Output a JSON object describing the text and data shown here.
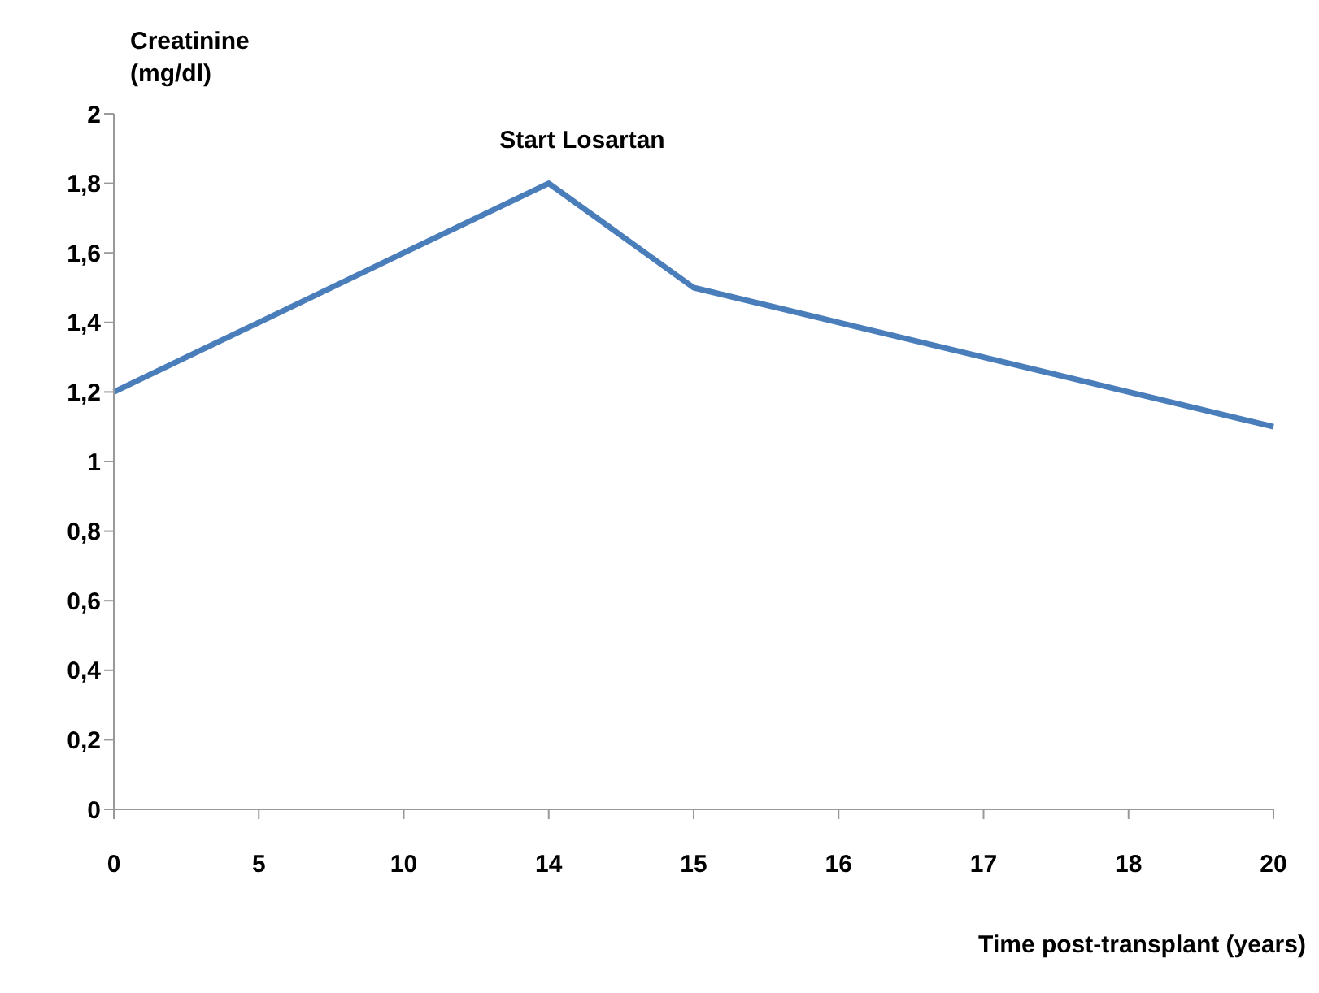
{
  "chart_data": {
    "type": "line",
    "ylabel": "Creatinine (mg/dl)",
    "xlabel": "Time post-transplant (years)",
    "categories": [
      "0",
      "5",
      "10",
      "14",
      "15",
      "16",
      "17",
      "18",
      "20"
    ],
    "series": [
      {
        "color": "#4a7ebb",
        "values": [
          1.2,
          1.4,
          1.6,
          1.8,
          1.5,
          1.4,
          1.3,
          1.2,
          1.1
        ]
      }
    ],
    "ylim": [
      0,
      2
    ],
    "yticks": [
      0,
      {
        "value": 0.2,
        "label": "0,2"
      },
      {
        "value": 0.4,
        "label": "0,4"
      },
      {
        "value": 0.6,
        "label": "0,6"
      },
      {
        "value": 0.8,
        "label": "0,8"
      },
      1,
      {
        "value": 1.2,
        "label": "1,2"
      },
      {
        "value": 1.4,
        "label": "1,4"
      },
      {
        "value": 1.6,
        "label": "1,6"
      },
      {
        "value": 1.8,
        "label": "1,8"
      },
      2
    ],
    "annotations": [
      "Start Losartan"
    ],
    "grid": false,
    "legend": false,
    "marker": "none",
    "line_style": "solid"
  }
}
